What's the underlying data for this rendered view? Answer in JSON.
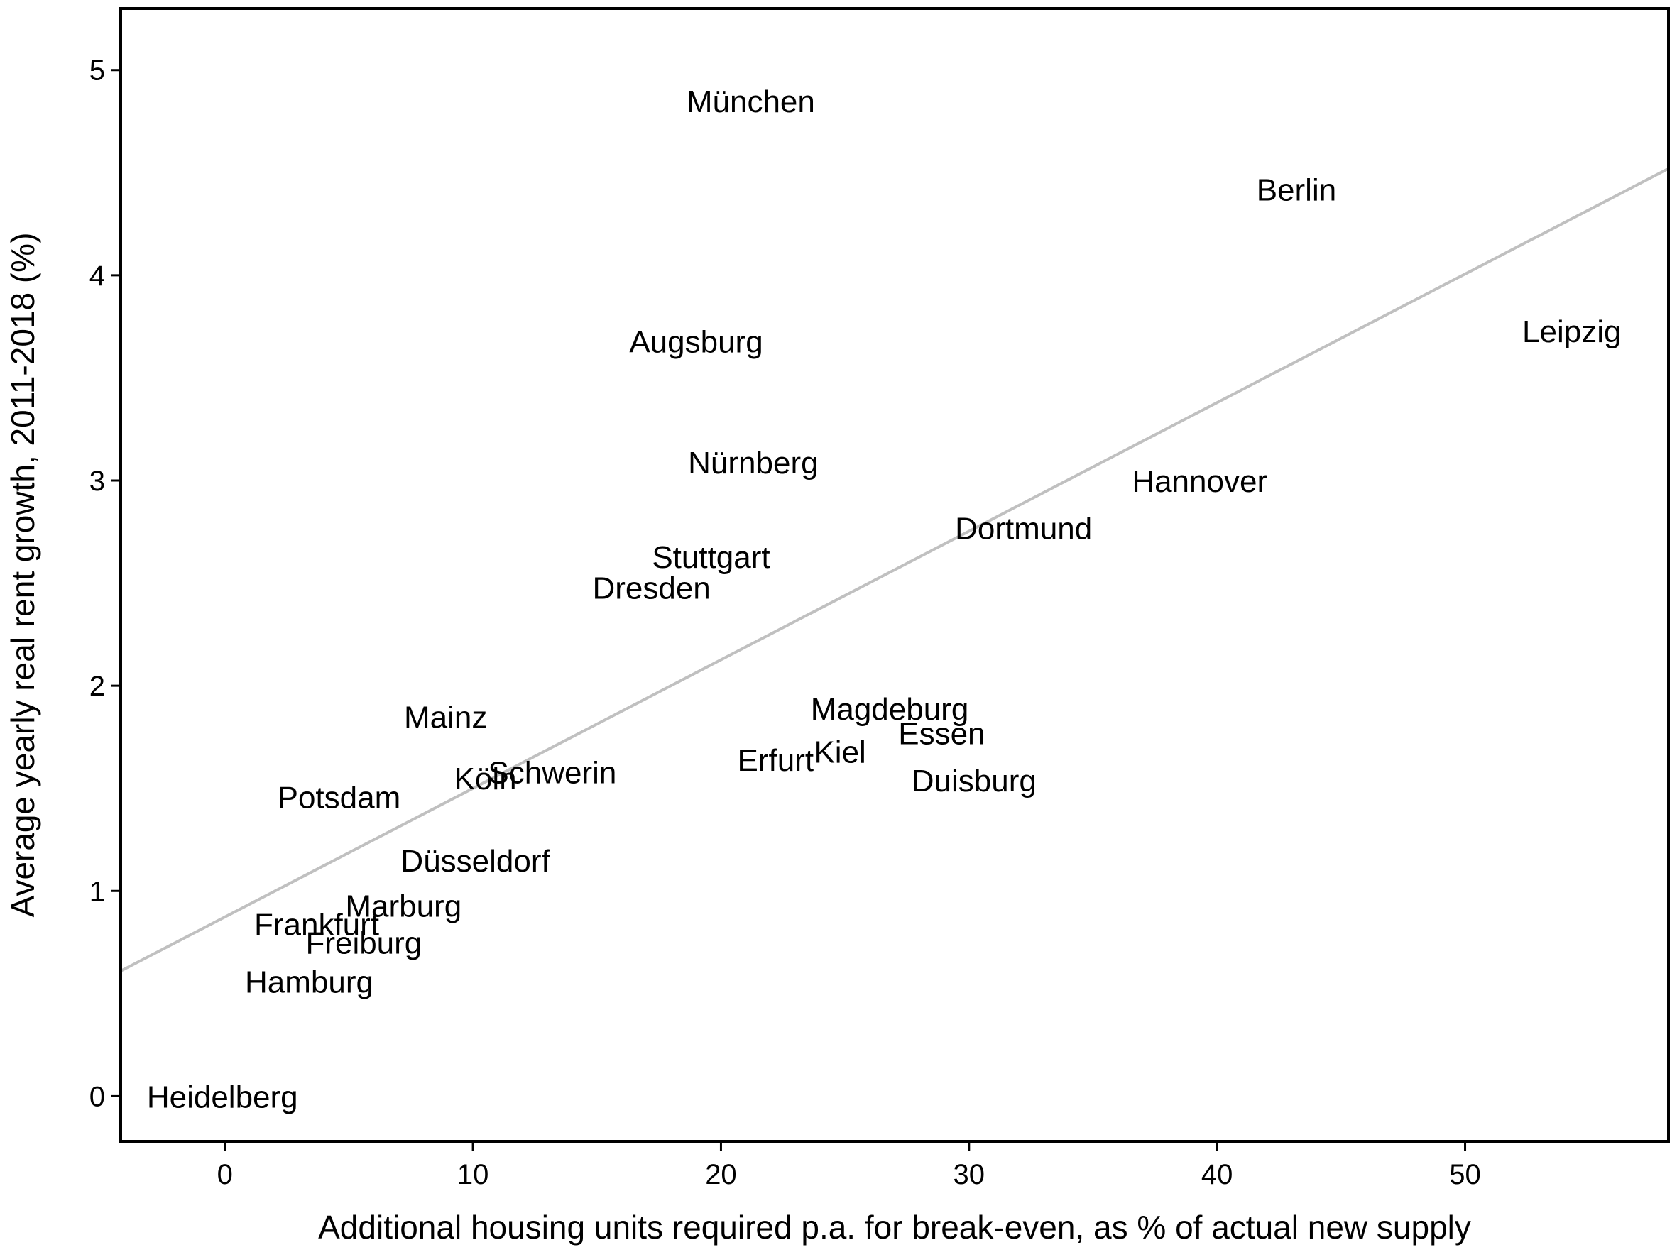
{
  "chart_data": {
    "type": "scatter",
    "title": "",
    "xlabel": "Additional housing units required p.a. for break-even, as % of actual new supply",
    "ylabel": "Average yearly real rent growth, 2011-2018 (%)",
    "xlim": [
      -4.2,
      58.2
    ],
    "ylim": [
      -0.22,
      5.3
    ],
    "x_ticks": [
      0,
      10,
      20,
      30,
      40,
      50
    ],
    "y_ticks": [
      0,
      1,
      2,
      3,
      4,
      5
    ],
    "grid": false,
    "legend": "none",
    "marker": "text-label",
    "colors": {
      "labels": "#000000",
      "fit_line": "#c0c0c0",
      "frame": "#000000"
    },
    "fit_line": {
      "x": [
        -4.2,
        58.2
      ],
      "y": [
        0.61,
        4.52
      ]
    },
    "points": [
      {
        "label": "München",
        "x": 21.2,
        "y": 4.85
      },
      {
        "label": "Berlin",
        "x": 43.2,
        "y": 4.42
      },
      {
        "label": "Leipzig",
        "x": 54.3,
        "y": 3.73
      },
      {
        "label": "Augsburg",
        "x": 19.0,
        "y": 3.68
      },
      {
        "label": "Nürnberg",
        "x": 21.3,
        "y": 3.09
      },
      {
        "label": "Hannover",
        "x": 39.3,
        "y": 3.0
      },
      {
        "label": "Dortmund",
        "x": 32.2,
        "y": 2.77
      },
      {
        "label": "Stuttgart",
        "x": 19.6,
        "y": 2.63
      },
      {
        "label": "Dresden",
        "x": 17.2,
        "y": 2.48
      },
      {
        "label": "Mainz",
        "x": 8.9,
        "y": 1.85
      },
      {
        "label": "Magdeburg",
        "x": 26.8,
        "y": 1.89
      },
      {
        "label": "Essen",
        "x": 28.9,
        "y": 1.77
      },
      {
        "label": "Kiel",
        "x": 24.8,
        "y": 1.68
      },
      {
        "label": "Erfurt",
        "x": 22.2,
        "y": 1.64
      },
      {
        "label": "Duisburg",
        "x": 30.2,
        "y": 1.54
      },
      {
        "label": "Schwerin",
        "x": 13.2,
        "y": 1.58
      },
      {
        "label": "Köln",
        "x": 10.5,
        "y": 1.55
      },
      {
        "label": "Potsdam",
        "x": 4.6,
        "y": 1.46
      },
      {
        "label": "Düsseldorf",
        "x": 10.1,
        "y": 1.15
      },
      {
        "label": "Marburg",
        "x": 7.2,
        "y": 0.93
      },
      {
        "label": "Frankfurt",
        "x": 3.7,
        "y": 0.84
      },
      {
        "label": "Freiburg",
        "x": 5.6,
        "y": 0.75
      },
      {
        "label": "Hamburg",
        "x": 3.4,
        "y": 0.56
      },
      {
        "label": "Heidelberg",
        "x": -0.1,
        "y": 0.0
      }
    ]
  }
}
